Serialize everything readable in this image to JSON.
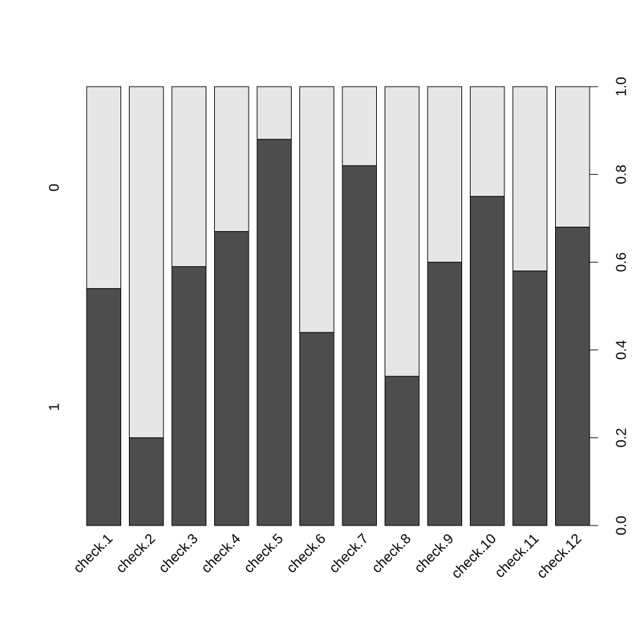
{
  "chart_data": {
    "type": "stacked_bar",
    "categories": [
      "check.1",
      "check.2",
      "check.3",
      "check.4",
      "check.5",
      "check.6",
      "check.7",
      "check.8",
      "check.9",
      "check.10",
      "check.11",
      "check.12"
    ],
    "series": [
      {
        "name": "1",
        "color": "#4d4d4d",
        "values": [
          0.54,
          0.2,
          0.59,
          0.67,
          0.88,
          0.44,
          0.82,
          0.34,
          0.6,
          0.75,
          0.58,
          0.68
        ]
      },
      {
        "name": "0",
        "color": "#e6e6e6",
        "values": [
          0.46,
          0.8,
          0.41,
          0.33,
          0.12,
          0.56,
          0.18,
          0.66,
          0.4,
          0.25,
          0.42,
          0.32
        ]
      }
    ],
    "ylim": [
      0,
      1
    ],
    "yticks": [
      {
        "value": 0,
        "label": "0.0"
      },
      {
        "value": 0.2,
        "label": "0.2"
      },
      {
        "value": 0.4,
        "label": "0.4"
      },
      {
        "value": 0.6,
        "label": "0.6"
      },
      {
        "value": 0.8,
        "label": "0.8"
      },
      {
        "value": 1,
        "label": "1.0"
      }
    ],
    "y_axis_side": "right"
  }
}
